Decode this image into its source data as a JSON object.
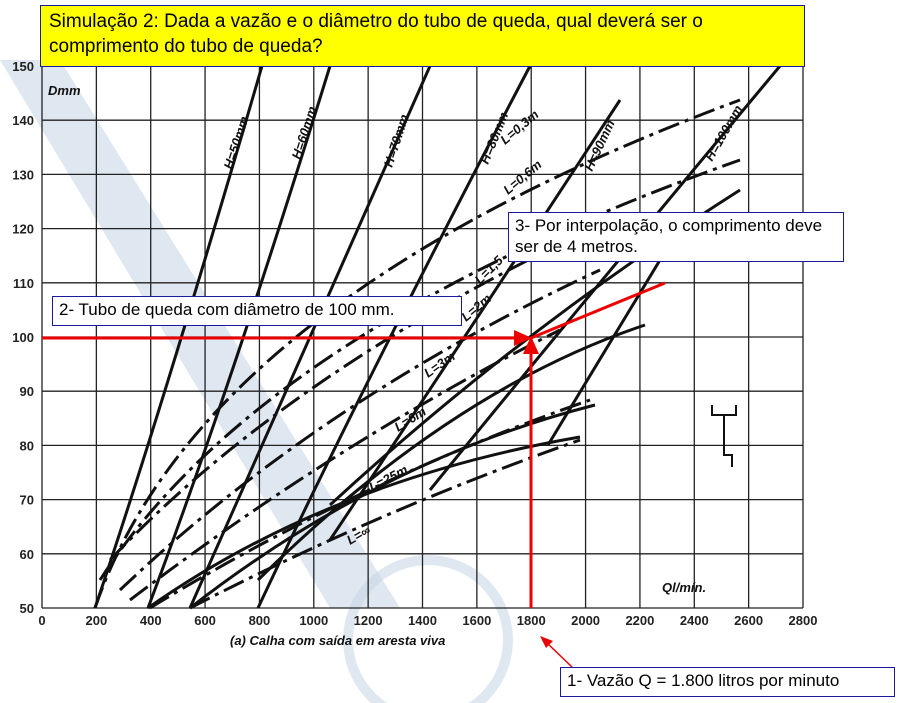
{
  "title": "Simulação 2: Dada a vazão e o diâmetro do tubo de queda, qual deverá ser o comprimento do tubo de queda?",
  "callouts": [
    "1- Vazão Q = 1.800 litros por minuto",
    "2- Tubo de queda com diâmetro de 100 mm.",
    "3- Por interpolação, o comprimento deve ser de 4 metros."
  ],
  "chart": {
    "y_label": "Dmm",
    "x_label": "Ql/mín.",
    "caption": "(a)  Calha com saída em aresta viva",
    "x_ticks": [
      0,
      200,
      400,
      600,
      800,
      1000,
      1200,
      1400,
      1600,
      1800,
      2000,
      2200,
      2400,
      2600,
      2800
    ],
    "y_ticks": [
      50,
      60,
      70,
      80,
      90,
      100,
      110,
      120,
      130,
      140,
      150
    ],
    "h_labels": [
      "H=50mm",
      "H=60mm",
      "H=70mm",
      "H=80mm",
      "H=90mm",
      "H=100mm"
    ],
    "l_labels": [
      "L=0,3m",
      "L=0,6m",
      "L=1,5",
      "L=2m",
      "L=3m",
      "L=6m",
      "L=25m",
      "L=∞"
    ]
  }
}
